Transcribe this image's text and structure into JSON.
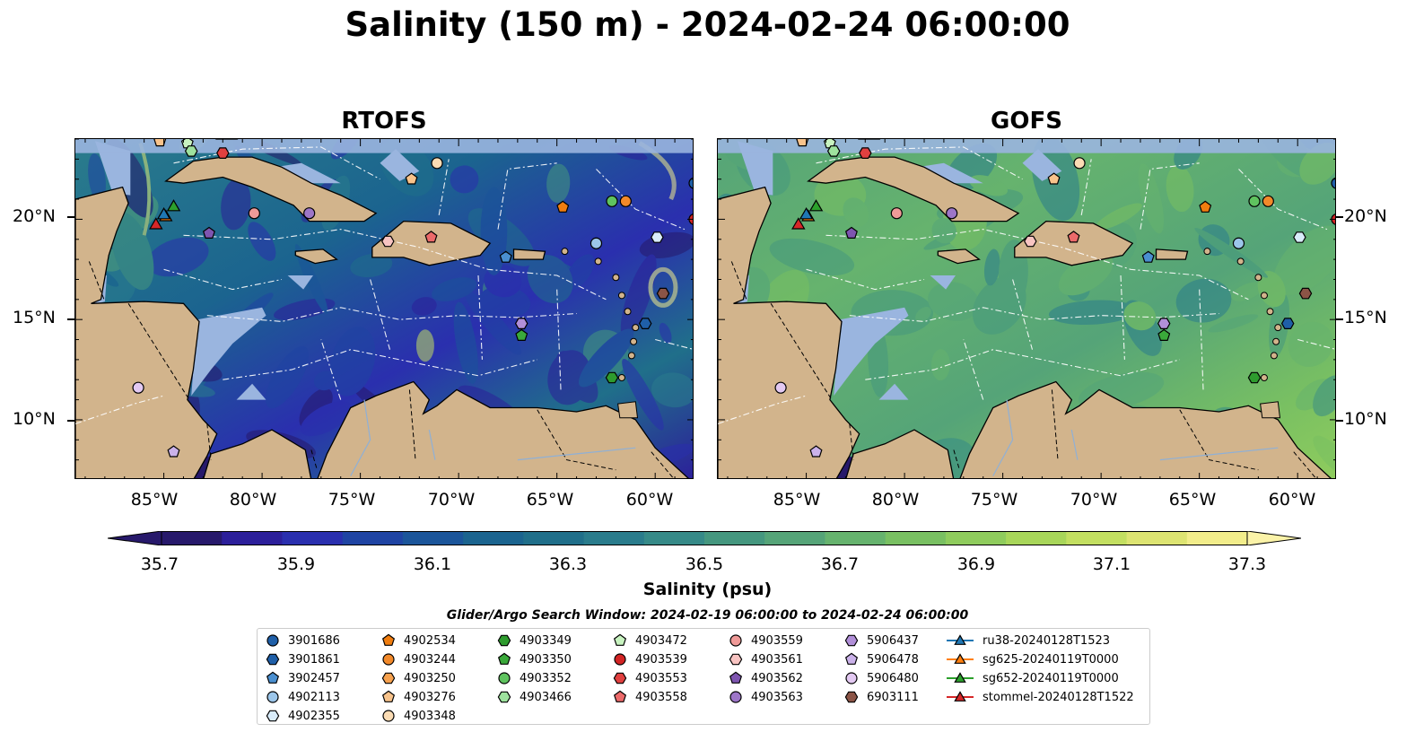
{
  "title": "Salinity (150 m) - 2024-02-24 06:00:00",
  "panels": [
    {
      "title": "RTOFS",
      "model": "rtofs"
    },
    {
      "title": "GOFS",
      "model": "gofs"
    }
  ],
  "lat_ticks": [
    "20°N",
    "15°N",
    "10°N"
  ],
  "lon_ticks": [
    "85°W",
    "80°W",
    "75°W",
    "70°W",
    "65°W",
    "60°W"
  ],
  "colorbar": {
    "label": "Salinity (psu)",
    "ticks": [
      "35.7",
      "35.9",
      "36.1",
      "36.3",
      "36.5",
      "36.7",
      "36.9",
      "37.1",
      "37.3"
    ],
    "range": [
      35.7,
      37.4
    ],
    "colors": [
      "#27196b",
      "#2c1f9a",
      "#2a2fae",
      "#1f44a3",
      "#1b559a",
      "#1b648f",
      "#206f8a",
      "#2a7c8c",
      "#368a88",
      "#45977f",
      "#55a478",
      "#66b36e",
      "#79c062",
      "#8fcc5d",
      "#a8d65a",
      "#c3df61",
      "#dde472",
      "#f2ed8b"
    ]
  },
  "search_window": "Glider/Argo Search Window: 2024-02-19 06:00:00 to 2024-02-24 06:00:00",
  "map_colors": {
    "land": "#d2b48c",
    "shelf": "#9ab5df",
    "deep_low": "#27196b"
  },
  "legend": [
    {
      "label": "3901686",
      "marker": "circle",
      "color": "#1f5fa8"
    },
    {
      "label": "3901861",
      "marker": "hexagon",
      "color": "#1f5fa8"
    },
    {
      "label": "3902457",
      "marker": "pentagon",
      "color": "#4a8fd0"
    },
    {
      "label": "4902113",
      "marker": "circle",
      "color": "#9cc6ea"
    },
    {
      "label": "4902355",
      "marker": "hexagon",
      "color": "#d9ecfa"
    },
    {
      "label": "4902534",
      "marker": "pentagon",
      "color": "#f07d0f"
    },
    {
      "label": "4903244",
      "marker": "circle",
      "color": "#f2892a"
    },
    {
      "label": "4903250",
      "marker": "hexagon",
      "color": "#f6a14e"
    },
    {
      "label": "4903276",
      "marker": "pentagon",
      "color": "#f8c38b"
    },
    {
      "label": "4903348",
      "marker": "circle",
      "color": "#fbdcb4"
    },
    {
      "label": "4903349",
      "marker": "hexagon",
      "color": "#2e9b2e"
    },
    {
      "label": "4903350",
      "marker": "pentagon",
      "color": "#3aa93a"
    },
    {
      "label": "4903352",
      "marker": "circle",
      "color": "#5fc35f"
    },
    {
      "label": "4903466",
      "marker": "hexagon",
      "color": "#9ee29e"
    },
    {
      "label": "4903472",
      "marker": "pentagon",
      "color": "#c8f3c0"
    },
    {
      "label": "4903539",
      "marker": "circle",
      "color": "#d22424"
    },
    {
      "label": "4903553",
      "marker": "hexagon",
      "color": "#e0403f"
    },
    {
      "label": "4903558",
      "marker": "pentagon",
      "color": "#ec6a6a"
    },
    {
      "label": "4903559",
      "marker": "circle",
      "color": "#f09a98"
    },
    {
      "label": "4903561",
      "marker": "hexagon",
      "color": "#f8c4c2"
    },
    {
      "label": "4903562",
      "marker": "pentagon",
      "color": "#7e55b0"
    },
    {
      "label": "4903563",
      "marker": "circle",
      "color": "#9d76c8"
    },
    {
      "label": "5906437",
      "marker": "hexagon",
      "color": "#b18fd8"
    },
    {
      "label": "5906478",
      "marker": "pentagon",
      "color": "#cbb2ea"
    },
    {
      "label": "5906480",
      "marker": "circle",
      "color": "#e3c9f2"
    },
    {
      "label": "6903111",
      "marker": "hexagon",
      "color": "#8b5446"
    },
    {
      "label": "ru38-20240128T1523",
      "marker": "triangle-line",
      "color": "#1f77b4"
    },
    {
      "label": "sg625-20240119T0000",
      "marker": "triangle-line",
      "color": "#ff7f0e"
    },
    {
      "label": "sg652-20240119T0000",
      "marker": "triangle-line",
      "color": "#2ca02c"
    },
    {
      "label": "stommel-20240128T1522",
      "marker": "triangle-line",
      "color": "#d62728"
    }
  ],
  "floats": [
    {
      "id": "4903276",
      "lon": -85.2,
      "lat": 23.9
    },
    {
      "id": "4903472",
      "lon": -83.8,
      "lat": 23.8
    },
    {
      "id": "4903466",
      "lon": -83.6,
      "lat": 23.4
    },
    {
      "id": "4903553",
      "lon": -82.0,
      "lat": 23.3
    },
    {
      "id": "4903348",
      "lon": -71.1,
      "lat": 22.8
    },
    {
      "id": "4903276",
      "lon": -72.4,
      "lat": 22.0
    },
    {
      "id": "4903244",
      "lon": -61.5,
      "lat": 20.9
    },
    {
      "id": "4903352",
      "lon": -62.2,
      "lat": 20.9
    },
    {
      "id": "4902534",
      "lon": -64.7,
      "lat": 20.6
    },
    {
      "id": "3901686",
      "lon": -58.0,
      "lat": 21.8
    },
    {
      "id": "4903539",
      "lon": -58.0,
      "lat": 20.0
    },
    {
      "id": "4903559",
      "lon": -80.4,
      "lat": 20.3
    },
    {
      "id": "4903563",
      "lon": -77.6,
      "lat": 20.3
    },
    {
      "id": "4903562",
      "lon": -82.7,
      "lat": 19.3
    },
    {
      "id": "4903561",
      "lon": -73.6,
      "lat": 18.9
    },
    {
      "id": "4903558",
      "lon": -71.4,
      "lat": 19.1
    },
    {
      "id": "4902113",
      "lon": -63.0,
      "lat": 18.8
    },
    {
      "id": "4902355",
      "lon": -59.9,
      "lat": 19.1
    },
    {
      "id": "3902457",
      "lon": -67.6,
      "lat": 18.1
    },
    {
      "id": "6903111",
      "lon": -59.6,
      "lat": 16.3
    },
    {
      "id": "3901861",
      "lon": -60.5,
      "lat": 14.8
    },
    {
      "id": "5906437",
      "lon": -66.8,
      "lat": 14.8
    },
    {
      "id": "4903350",
      "lon": -66.8,
      "lat": 14.2
    },
    {
      "id": "4903349",
      "lon": -62.2,
      "lat": 12.1
    },
    {
      "id": "5906480",
      "lon": -86.3,
      "lat": 11.6
    },
    {
      "id": "5906478",
      "lon": -84.5,
      "lat": 8.4
    }
  ],
  "gliders": [
    {
      "id": "sg652-20240119T0000",
      "lon": -84.5,
      "lat": 20.6
    },
    {
      "id": "sg625-20240119T0000",
      "lon": -84.9,
      "lat": 20.1
    },
    {
      "id": "stommel-20240128T1522",
      "lon": -85.4,
      "lat": 19.7
    },
    {
      "id": "ru38-20240128T1523",
      "lon": -85.0,
      "lat": 20.2
    }
  ]
}
